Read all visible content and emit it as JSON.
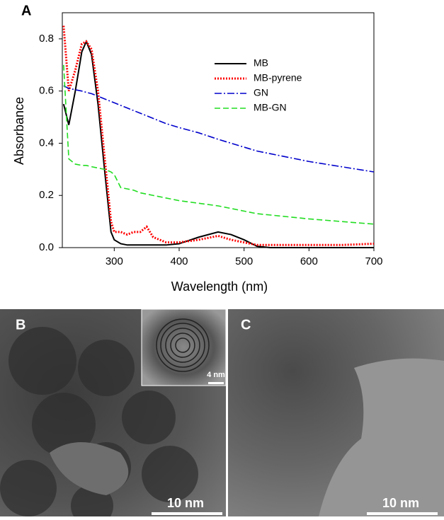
{
  "chart_data": {
    "type": "line",
    "panel_label": "A",
    "xlabel": "Wavelength (nm)",
    "ylabel": "Absorbance",
    "x": [
      222,
      230,
      240,
      250,
      257,
      265,
      275,
      285,
      295,
      300,
      310,
      320,
      330,
      340,
      350,
      360,
      380,
      400,
      430,
      460,
      480,
      500,
      520,
      540,
      600,
      650,
      700
    ],
    "series": [
      {
        "name": "MB",
        "color": "#000000",
        "style": "solid",
        "values": [
          0.55,
          0.47,
          0.6,
          0.75,
          0.79,
          0.74,
          0.55,
          0.3,
          0.06,
          0.03,
          0.015,
          0.01,
          0.01,
          0.01,
          0.01,
          0.01,
          0.01,
          0.015,
          0.04,
          0.06,
          0.05,
          0.03,
          0.005,
          0,
          0,
          0,
          0
        ]
      },
      {
        "name": "MB-pyrene",
        "color": "#ff0000",
        "style": "dotted",
        "values": [
          0.85,
          0.6,
          0.68,
          0.78,
          0.79,
          0.76,
          0.6,
          0.35,
          0.1,
          0.06,
          0.06,
          0.05,
          0.06,
          0.06,
          0.08,
          0.04,
          0.02,
          0.02,
          0.03,
          0.045,
          0.03,
          0.02,
          0.01,
          0.01,
          0.01,
          0.01,
          0.015
        ]
      },
      {
        "name": "GN",
        "color": "#0000cc",
        "style": "dashdot",
        "values": [
          0.62,
          0.61,
          0.605,
          0.6,
          0.595,
          0.59,
          0.58,
          0.57,
          0.56,
          0.555,
          0.545,
          0.535,
          0.525,
          0.515,
          0.505,
          0.495,
          0.475,
          0.46,
          0.44,
          0.415,
          0.4,
          0.385,
          0.37,
          0.36,
          0.33,
          0.31,
          0.29
        ]
      },
      {
        "name": "MB-GN",
        "color": "#22dd22",
        "style": "dashed",
        "values": [
          0.7,
          0.34,
          0.32,
          0.315,
          0.315,
          0.31,
          0.305,
          0.3,
          0.29,
          0.28,
          0.23,
          0.225,
          0.22,
          0.21,
          0.205,
          0.2,
          0.19,
          0.18,
          0.17,
          0.16,
          0.15,
          0.14,
          0.13,
          0.125,
          0.11,
          0.1,
          0.09
        ]
      }
    ],
    "xlim": [
      220,
      700
    ],
    "ylim": [
      0,
      0.9
    ],
    "xticks": [
      300,
      400,
      500,
      600,
      700
    ],
    "yticks": [
      {
        "value": 0,
        "label": "0.0"
      },
      0.2,
      0.4,
      0.6,
      0.8
    ],
    "legend": "upper right"
  },
  "panels": [
    {
      "label": "B",
      "scale_bar": "10 nm",
      "inset_scale_bar": "4 nm"
    },
    {
      "label": "C",
      "scale_bar": "10 nm"
    }
  ]
}
